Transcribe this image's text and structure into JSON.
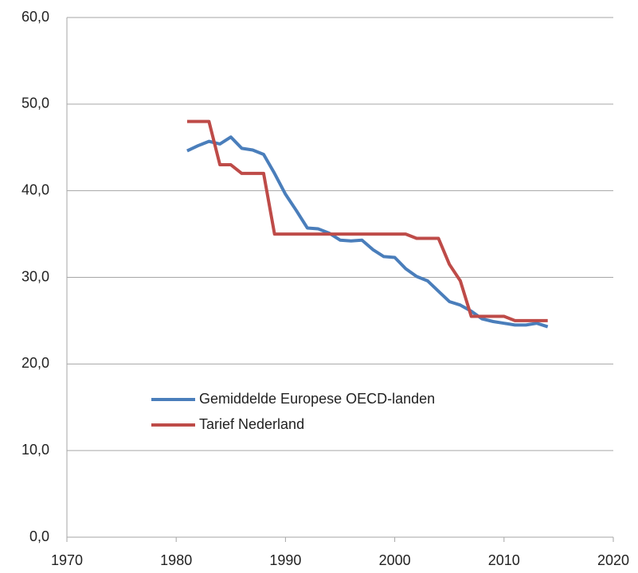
{
  "chart_data": {
    "type": "line",
    "x": [
      1981,
      1982,
      1983,
      1984,
      1985,
      1986,
      1987,
      1988,
      1989,
      1990,
      1991,
      1992,
      1993,
      1994,
      1995,
      1996,
      1997,
      1998,
      1999,
      2000,
      2001,
      2002,
      2003,
      2004,
      2005,
      2006,
      2007,
      2008,
      2009,
      2010,
      2011,
      2012,
      2013,
      2014
    ],
    "series": [
      {
        "name": "Gemiddelde Europese OECD-landen",
        "color": "#4a7ebb",
        "values": [
          44.6,
          45.2,
          45.7,
          45.4,
          46.2,
          44.9,
          44.7,
          44.2,
          42.0,
          39.6,
          37.7,
          35.7,
          35.6,
          35.1,
          34.3,
          34.2,
          34.3,
          33.2,
          32.4,
          32.3,
          31.0,
          30.1,
          29.6,
          28.4,
          27.2,
          26.8,
          26.1,
          25.2,
          24.9,
          24.7,
          24.5,
          24.5,
          24.7,
          24.3
        ]
      },
      {
        "name": "Tarief Nederland",
        "color": "#be4b48",
        "values": [
          48,
          48,
          48,
          43,
          43,
          42,
          42,
          42,
          35,
          35,
          35,
          35,
          35,
          35,
          35,
          35,
          35,
          35,
          35,
          35,
          35,
          34.5,
          34.5,
          34.5,
          31.5,
          29.6,
          25.5,
          25.5,
          25.5,
          25.5,
          25,
          25,
          25,
          25
        ]
      }
    ],
    "xlim": [
      1970,
      2020
    ],
    "xticks": [
      1970,
      1980,
      1990,
      2000,
      2010,
      2020
    ],
    "ylim": [
      0,
      60
    ],
    "yticks": [
      {
        "value": 0,
        "label": "0,0"
      },
      {
        "value": 10,
        "label": "10,0"
      },
      {
        "value": 20,
        "label": "20,0"
      },
      {
        "value": 30,
        "label": "30,0"
      },
      {
        "value": 40,
        "label": "40,0"
      },
      {
        "value": 50,
        "label": "50,0"
      },
      {
        "value": 60,
        "label": "60,0"
      }
    ],
    "grid": true,
    "legend": "inside-lower-left"
  }
}
